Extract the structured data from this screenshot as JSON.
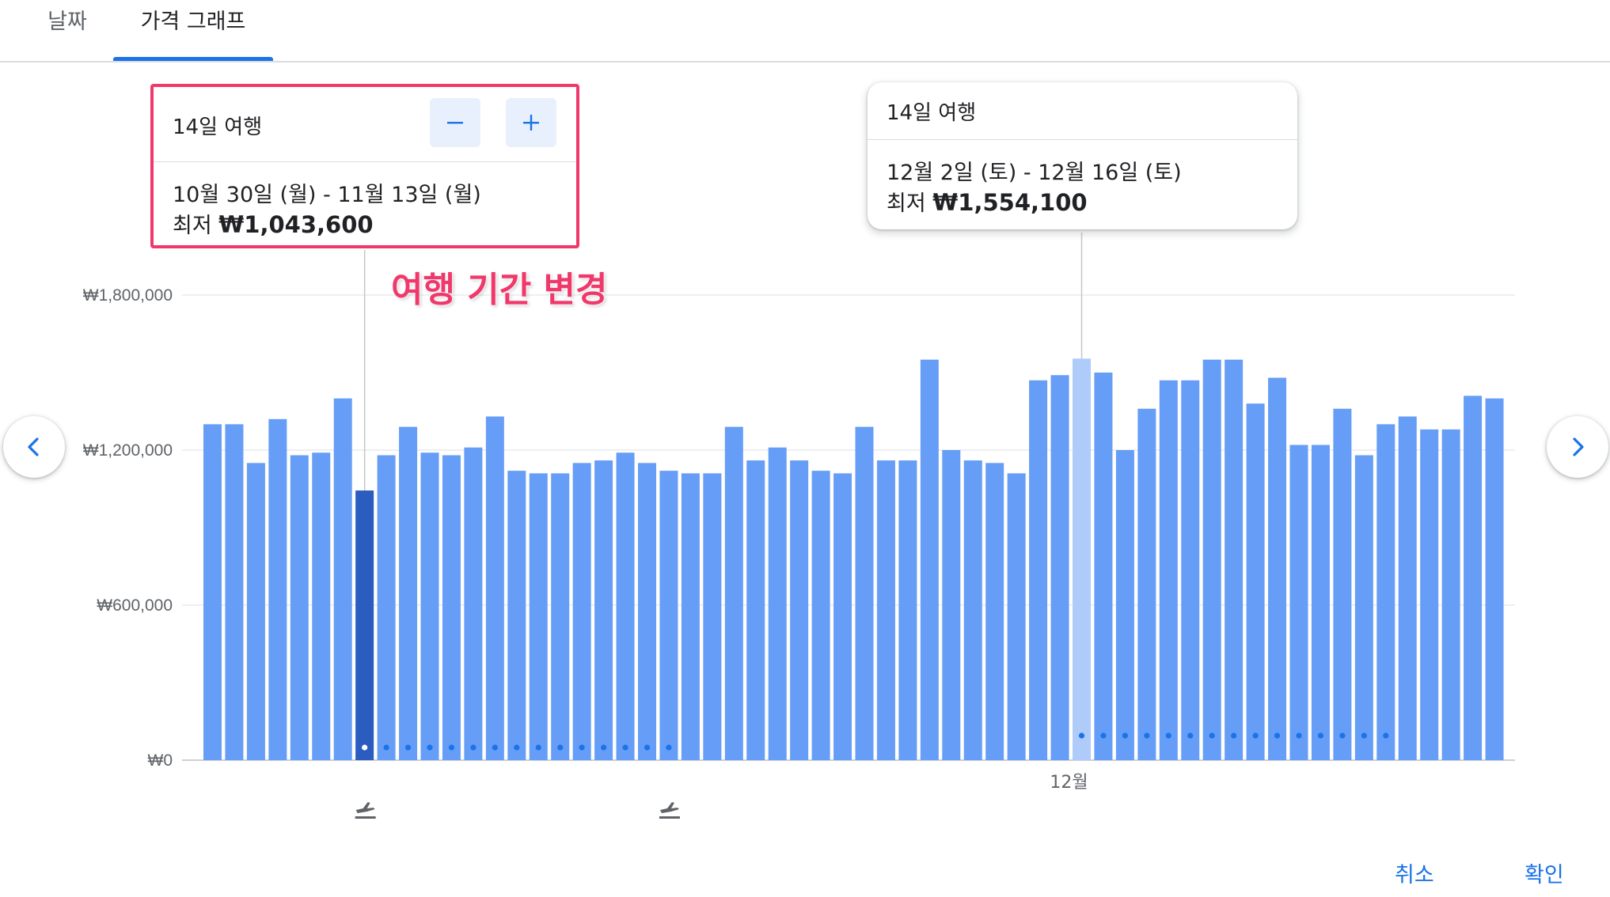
{
  "tabs": [
    {
      "label": "날짜",
      "selected": false
    },
    {
      "label": "가격 그래프",
      "selected": true
    }
  ],
  "selected_card": {
    "trip_length": "14일 여행",
    "dates": "10월 30일 (월) - 11월 13일 (월)",
    "price_prefix": "최저",
    "price": "₩1,043,600",
    "minus_icon": "minus-icon",
    "plus_icon": "plus-icon"
  },
  "hover_card": {
    "trip_length": "14일 여행",
    "dates": "12월 2일 (토) - 12월 16일 (토)",
    "price_prefix": "최저",
    "price": "₩1,554,100"
  },
  "annotation": "여행 기간 변경",
  "footer": {
    "cancel": "취소",
    "confirm": "확인"
  },
  "colors": {
    "bar": "#669df6",
    "selected_bar": "#2b5cbf",
    "hover_bar": "#aecbfa",
    "accent": "#1a73e8",
    "highlight": "#f0386b"
  },
  "chart_data": {
    "type": "bar",
    "ylim": [
      0,
      1800000
    ],
    "yticks": [
      {
        "value": 0,
        "label": "₩0"
      },
      {
        "value": 600000,
        "label": "₩600,000"
      },
      {
        "value": 1200000,
        "label": "₩1,200,000"
      },
      {
        "value": 1800000,
        "label": "₩1,800,000"
      }
    ],
    "x_labels": [
      {
        "index": 40,
        "label": "12월"
      }
    ],
    "values": [
      1300000,
      1300000,
      1150000,
      1320000,
      1180000,
      1190000,
      1400000,
      1043600,
      1180000,
      1290000,
      1190000,
      1180000,
      1210000,
      1330000,
      1120000,
      1110000,
      1110000,
      1150000,
      1160000,
      1190000,
      1150000,
      1120000,
      1110000,
      1110000,
      1290000,
      1160000,
      1210000,
      1160000,
      1120000,
      1110000,
      1290000,
      1160000,
      1160000,
      1550000,
      1200000,
      1160000,
      1150000,
      1110000,
      1470000,
      1490000,
      1554100,
      1500000,
      1200000,
      1360000,
      1470000,
      1470000,
      1550000,
      1550000,
      1380000,
      1480000,
      1220000,
      1220000,
      1360000,
      1180000,
      1300000,
      1330000,
      1280000,
      1280000,
      1410000,
      1400000
    ],
    "selected_index": 7,
    "hover_index": 40,
    "trip_dots": [
      {
        "start": 7,
        "end": 21,
        "color": "#1a73e8",
        "first_color": "#ffffff"
      },
      {
        "start": 40,
        "end": 54,
        "color": "#1a73e8"
      }
    ],
    "flight_markers": [
      {
        "index": 7,
        "icon": "airplane-takeoff-icon"
      },
      {
        "index": 21,
        "icon": "airplane-landing-icon"
      }
    ],
    "grid": true
  }
}
